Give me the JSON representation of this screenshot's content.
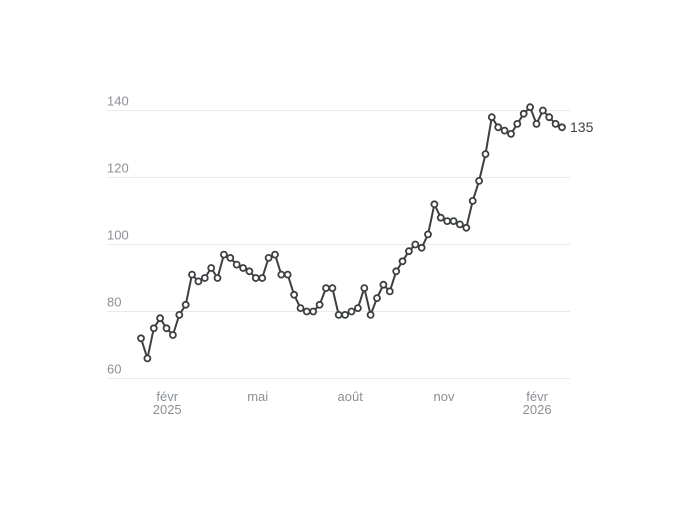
{
  "chart_style": {
    "background_color": "#ffffff",
    "line_color": "#3c4043",
    "marker_fill": "#ffffff",
    "grid_color": "#e8eaed",
    "tick_label_color": "#8b9095",
    "end_label_color": "#3c4043"
  },
  "chart_data": {
    "type": "line",
    "title": "",
    "legend": "none",
    "grid": "horizontal",
    "marker": "hollow-circle",
    "values": [
      72,
      66,
      75,
      78,
      75,
      73,
      79,
      82,
      91,
      89,
      90,
      93,
      90,
      97,
      96,
      94,
      93,
      92,
      90,
      90,
      96,
      97,
      91,
      91,
      85,
      81,
      80,
      80,
      82,
      87,
      87,
      79,
      79,
      80,
      81,
      87,
      79,
      84,
      88,
      86,
      92,
      95,
      98,
      100,
      99,
      103,
      112,
      108,
      107,
      107,
      106,
      105,
      113,
      119,
      127,
      138,
      135,
      134,
      133,
      136,
      139,
      141,
      136,
      140,
      138,
      136,
      135
    ],
    "y_ticks": [
      140,
      120,
      100,
      80,
      60
    ],
    "ylim": [
      58,
      144
    ],
    "x_ticks": [
      {
        "label": "févr",
        "year": "2025",
        "pos": 4.1
      },
      {
        "label": "mai",
        "year": "",
        "pos": 18.3
      },
      {
        "label": "août",
        "year": "",
        "pos": 32.8
      },
      {
        "label": "nov",
        "year": "",
        "pos": 47.5
      },
      {
        "label": "févr",
        "year": "2026",
        "pos": 62.1
      }
    ],
    "last_value_label": "135"
  }
}
